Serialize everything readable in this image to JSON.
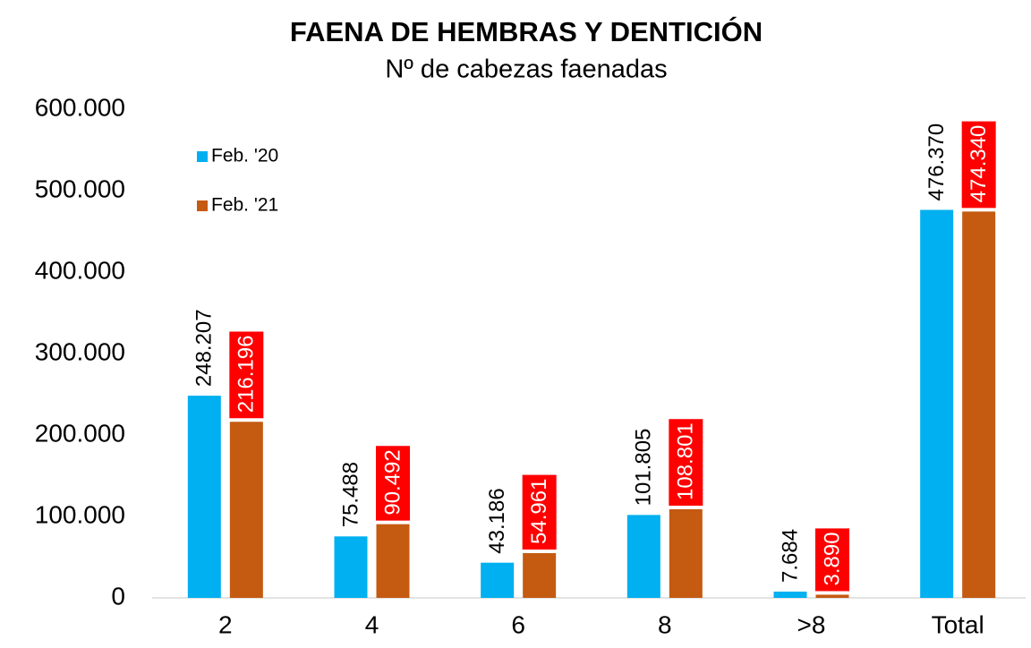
{
  "chart_data": {
    "type": "bar",
    "title": "FAENA DE HEMBRAS Y DENTICIÓN",
    "subtitle": "Nº de cabezas faenadas",
    "categories": [
      "2",
      "4",
      "6",
      "8",
      ">8",
      "Total"
    ],
    "series": [
      {
        "name": "Feb. '20",
        "color": "#00b0f0",
        "values": [
          248207,
          75488,
          43186,
          101805,
          7684,
          476370
        ],
        "value_labels": [
          "248.207",
          "75.488",
          "43.186",
          "101.805",
          "7.684",
          "476.370"
        ]
      },
      {
        "name": "Feb. '21",
        "color": "#c55a11",
        "label_box_color": "#ff0000",
        "values": [
          216196,
          90492,
          54961,
          108801,
          3890,
          474340
        ],
        "value_labels": [
          "216.196",
          "90.492",
          "54.961",
          "108.801",
          "3.890",
          "474.340"
        ]
      }
    ],
    "ylim": [
      0,
      600000
    ],
    "yticks": [
      0,
      {
        "value": 100000,
        "label": "100.000"
      },
      {
        "value": 200000,
        "label": "200.000"
      },
      {
        "value": 300000,
        "label": "300.000"
      },
      {
        "value": 400000,
        "label": "400.000"
      },
      {
        "value": 500000,
        "label": "500.000"
      },
      {
        "value": 600000,
        "label": "600.000"
      }
    ],
    "grid": false,
    "legend": "upper left"
  }
}
